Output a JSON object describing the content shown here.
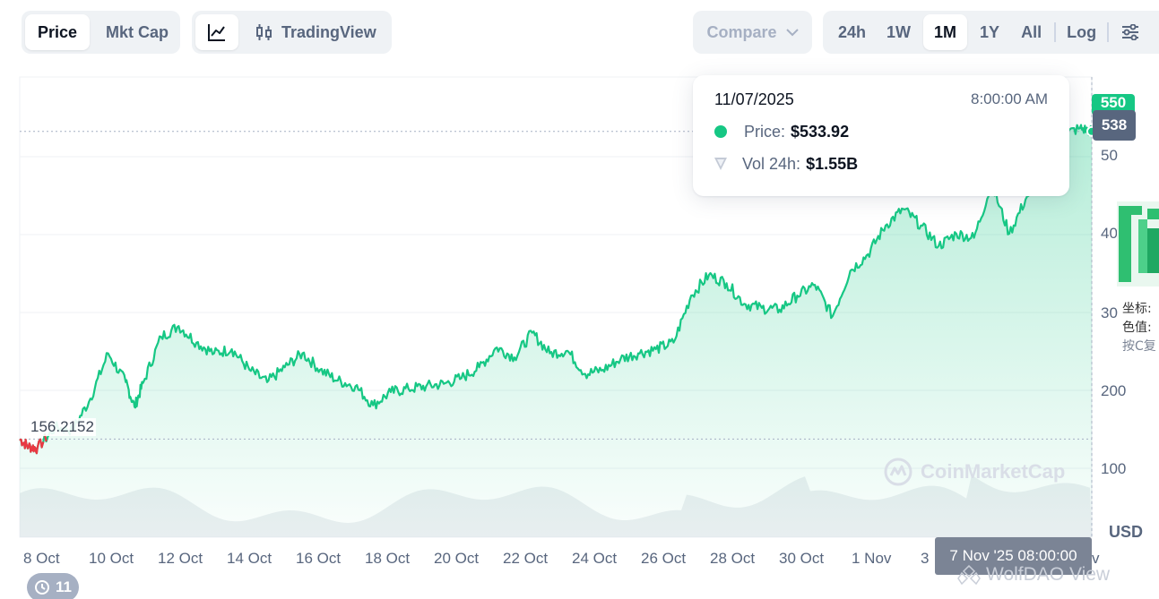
{
  "toolbar": {
    "view_tabs": [
      "Price",
      "Mkt Cap"
    ],
    "active_view": "Price",
    "chart_style_label": "TradingView",
    "compare_label": "Compare",
    "ranges": [
      "24h",
      "1W",
      "1M",
      "1Y",
      "All"
    ],
    "active_range": "1M",
    "log_label": "Log"
  },
  "tooltip": {
    "date": "11/07/2025",
    "time": "8:00:00 AM",
    "price_label": "Price:",
    "price_value": "$533.92",
    "vol_label": "Vol 24h:",
    "vol_value": "$1.55B"
  },
  "price_tags": {
    "current": "538",
    "partial_top": "550"
  },
  "start_price": "156.2152",
  "hover_time": "7 Nov '25 08:00:00",
  "currency": "USD",
  "brand": "CoinMarketCap",
  "watermark": "WolfDAO View",
  "notification_count": "11",
  "side_overlay": {
    "line1": "坐标:",
    "line2": "色值:",
    "line3": "按C复"
  },
  "colors": {
    "up": "#16c784",
    "down": "#ea3943",
    "grid": "#eff2f5"
  },
  "chart_data": {
    "type": "area",
    "y_axis_ticks": [
      "50",
      "40",
      "30",
      "200",
      "100"
    ],
    "x_axis_ticks": [
      "8 Oct",
      "10 Oct",
      "12 Oct",
      "14 Oct",
      "16 Oct",
      "18 Oct",
      "20 Oct",
      "22 Oct",
      "24 Oct",
      "26 Oct",
      "28 Oct",
      "30 Oct",
      "1 Nov",
      "3",
      "v"
    ],
    "x_start": "2025-10-08",
    "x_end": "2025-11-07 08:00",
    "ylim": [
      42,
      600
    ],
    "series": [
      {
        "values_over_time": [
          [
            "2025-10-08 00:00",
            161
          ],
          [
            "2025-10-08 06:00",
            152
          ],
          [
            "2025-10-08 12:00",
            150
          ],
          [
            "2025-10-09 00:00",
            175
          ],
          [
            "2025-10-09 12:00",
            172
          ],
          [
            "2025-10-10 00:00",
            210
          ],
          [
            "2025-10-10 12:00",
            265
          ],
          [
            "2025-10-11 00:00",
            230
          ],
          [
            "2025-10-11 06:00",
            200
          ],
          [
            "2025-10-11 12:00",
            230
          ],
          [
            "2025-10-12 00:00",
            285
          ],
          [
            "2025-10-12 12:00",
            298
          ],
          [
            "2025-10-13 00:00",
            278
          ],
          [
            "2025-10-13 12:00",
            265
          ],
          [
            "2025-10-14 00:00",
            270
          ],
          [
            "2025-10-14 12:00",
            245
          ],
          [
            "2025-10-15 00:00",
            230
          ],
          [
            "2025-10-15 12:00",
            248
          ],
          [
            "2025-10-16 00:00",
            265
          ],
          [
            "2025-10-16 12:00",
            245
          ],
          [
            "2025-10-17 00:00",
            232
          ],
          [
            "2025-10-17 12:00",
            225
          ],
          [
            "2025-10-18 00:00",
            202
          ],
          [
            "2025-10-18 12:00",
            218
          ],
          [
            "2025-10-19 00:00",
            222
          ],
          [
            "2025-10-19 12:00",
            225
          ],
          [
            "2025-10-20 00:00",
            228
          ],
          [
            "2025-10-20 12:00",
            235
          ],
          [
            "2025-10-21 00:00",
            248
          ],
          [
            "2025-10-21 12:00",
            272
          ],
          [
            "2025-10-22 00:00",
            260
          ],
          [
            "2025-10-22 12:00",
            290
          ],
          [
            "2025-10-23 00:00",
            265
          ],
          [
            "2025-10-23 12:00",
            268
          ],
          [
            "2025-10-24 00:00",
            240
          ],
          [
            "2025-10-24 12:00",
            245
          ],
          [
            "2025-10-25 00:00",
            258
          ],
          [
            "2025-10-25 12:00",
            265
          ],
          [
            "2025-10-26 00:00",
            270
          ],
          [
            "2025-10-26 12:00",
            278
          ],
          [
            "2025-10-27 00:00",
            335
          ],
          [
            "2025-10-27 12:00",
            360
          ],
          [
            "2025-10-28 00:00",
            350
          ],
          [
            "2025-10-28 12:00",
            325
          ],
          [
            "2025-10-29 00:00",
            320
          ],
          [
            "2025-10-29 12:00",
            318
          ],
          [
            "2025-10-30 00:00",
            335
          ],
          [
            "2025-10-30 12:00",
            348
          ],
          [
            "2025-10-31 00:00",
            310
          ],
          [
            "2025-10-31 12:00",
            365
          ],
          [
            "2025-11-01 00:00",
            385
          ],
          [
            "2025-11-01 12:00",
            420
          ],
          [
            "2025-11-02 00:00",
            440
          ],
          [
            "2025-11-02 12:00",
            420
          ],
          [
            "2025-11-03 00:00",
            395
          ],
          [
            "2025-11-03 12:00",
            410
          ],
          [
            "2025-11-04 00:00",
            405
          ],
          [
            "2025-11-04 12:00",
            470
          ],
          [
            "2025-11-05 00:00",
            410
          ],
          [
            "2025-11-05 12:00",
            455
          ],
          [
            "2025-11-06 00:00",
            480
          ],
          [
            "2025-11-06 12:00",
            530
          ],
          [
            "2025-11-07 00:00",
            538
          ],
          [
            "2025-11-07 08:00",
            534
          ]
        ]
      }
    ],
    "legend": [],
    "grid": true
  }
}
